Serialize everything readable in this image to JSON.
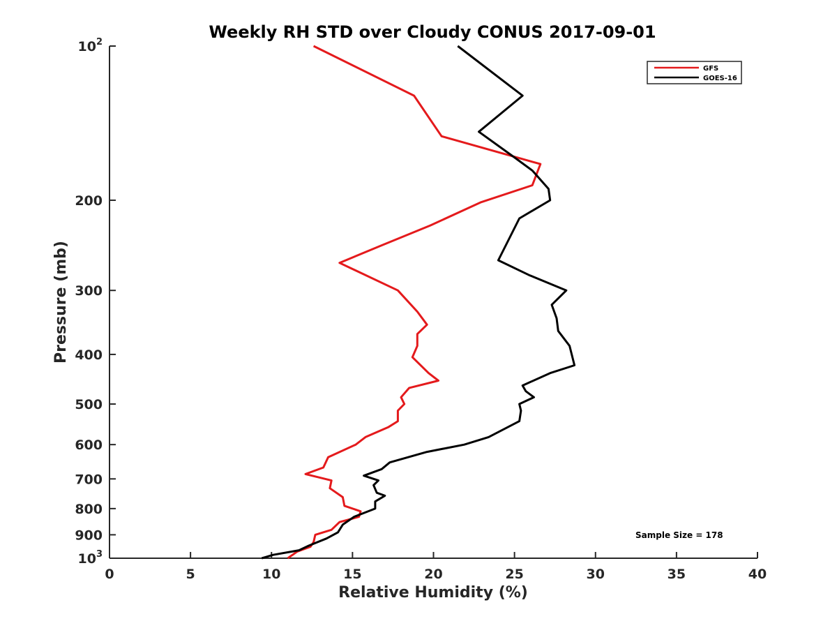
{
  "chart_data": {
    "type": "line",
    "title": "Weekly RH STD over Cloudy CONUS 2017-09-01",
    "xlabel": "Relative Humidity (%)",
    "ylabel": "Pressure (mb)",
    "xlim": [
      0,
      40
    ],
    "ylim": [
      100,
      1000
    ],
    "yscale": "log",
    "y_reversed": true,
    "grid": false,
    "legend_position": "top-right",
    "x_ticks": [
      0,
      5,
      10,
      15,
      20,
      25,
      30,
      35,
      40
    ],
    "x_tick_labels": [
      "0",
      "5",
      "10",
      "15",
      "20",
      "25",
      "30",
      "35",
      "40"
    ],
    "y_ticks": [
      {
        "value": 100,
        "base": "10",
        "exp": "2"
      },
      {
        "value": 200,
        "label": "200"
      },
      {
        "value": 300,
        "label": "300"
      },
      {
        "value": 400,
        "label": "400"
      },
      {
        "value": 500,
        "label": "500"
      },
      {
        "value": 600,
        "label": "600"
      },
      {
        "value": 700,
        "label": "700"
      },
      {
        "value": 800,
        "label": "800"
      },
      {
        "value": 900,
        "label": "900"
      },
      {
        "value": 1000,
        "base": "10",
        "exp": "3"
      }
    ],
    "annotation": "Sample Size = 178",
    "series": [
      {
        "name": "GFS",
        "color": "#e41a1c",
        "points": [
          {
            "x": 12.6,
            "y": 100
          },
          {
            "x": 18.8,
            "y": 125
          },
          {
            "x": 20.5,
            "y": 150
          },
          {
            "x": 26.6,
            "y": 170
          },
          {
            "x": 26.1,
            "y": 187
          },
          {
            "x": 22.9,
            "y": 202
          },
          {
            "x": 19.8,
            "y": 224
          },
          {
            "x": 16.8,
            "y": 245
          },
          {
            "x": 14.2,
            "y": 265
          },
          {
            "x": 17.8,
            "y": 300
          },
          {
            "x": 19.0,
            "y": 330
          },
          {
            "x": 19.6,
            "y": 350
          },
          {
            "x": 19.0,
            "y": 365
          },
          {
            "x": 19.0,
            "y": 385
          },
          {
            "x": 18.7,
            "y": 405
          },
          {
            "x": 19.7,
            "y": 435
          },
          {
            "x": 20.3,
            "y": 450
          },
          {
            "x": 18.5,
            "y": 465
          },
          {
            "x": 18.0,
            "y": 485
          },
          {
            "x": 18.2,
            "y": 500
          },
          {
            "x": 17.8,
            "y": 515
          },
          {
            "x": 17.8,
            "y": 540
          },
          {
            "x": 17.2,
            "y": 555
          },
          {
            "x": 15.8,
            "y": 580
          },
          {
            "x": 15.2,
            "y": 600
          },
          {
            "x": 13.5,
            "y": 635
          },
          {
            "x": 13.2,
            "y": 665
          },
          {
            "x": 12.1,
            "y": 685
          },
          {
            "x": 13.7,
            "y": 705
          },
          {
            "x": 13.6,
            "y": 730
          },
          {
            "x": 14.4,
            "y": 760
          },
          {
            "x": 14.5,
            "y": 790
          },
          {
            "x": 15.5,
            "y": 810
          },
          {
            "x": 15.4,
            "y": 830
          },
          {
            "x": 14.2,
            "y": 850
          },
          {
            "x": 13.7,
            "y": 880
          },
          {
            "x": 12.7,
            "y": 900
          },
          {
            "x": 12.6,
            "y": 930
          },
          {
            "x": 12.4,
            "y": 950
          },
          {
            "x": 11.6,
            "y": 970
          },
          {
            "x": 11.0,
            "y": 1000
          }
        ]
      },
      {
        "name": "GOES-16",
        "color": "#000000",
        "points": [
          {
            "x": 21.5,
            "y": 100
          },
          {
            "x": 25.5,
            "y": 125
          },
          {
            "x": 22.8,
            "y": 147
          },
          {
            "x": 25.0,
            "y": 165
          },
          {
            "x": 26.1,
            "y": 175
          },
          {
            "x": 27.1,
            "y": 190
          },
          {
            "x": 27.2,
            "y": 200
          },
          {
            "x": 25.3,
            "y": 217
          },
          {
            "x": 24.0,
            "y": 262
          },
          {
            "x": 25.9,
            "y": 280
          },
          {
            "x": 28.2,
            "y": 300
          },
          {
            "x": 27.3,
            "y": 320
          },
          {
            "x": 27.6,
            "y": 340
          },
          {
            "x": 27.7,
            "y": 360
          },
          {
            "x": 28.4,
            "y": 385
          },
          {
            "x": 28.7,
            "y": 420
          },
          {
            "x": 27.2,
            "y": 435
          },
          {
            "x": 25.5,
            "y": 460
          },
          {
            "x": 25.7,
            "y": 472
          },
          {
            "x": 26.2,
            "y": 485
          },
          {
            "x": 25.3,
            "y": 500
          },
          {
            "x": 25.4,
            "y": 515
          },
          {
            "x": 25.3,
            "y": 540
          },
          {
            "x": 23.4,
            "y": 580
          },
          {
            "x": 21.9,
            "y": 600
          },
          {
            "x": 19.6,
            "y": 620
          },
          {
            "x": 17.3,
            "y": 650
          },
          {
            "x": 16.8,
            "y": 670
          },
          {
            "x": 15.7,
            "y": 690
          },
          {
            "x": 16.6,
            "y": 705
          },
          {
            "x": 16.3,
            "y": 720
          },
          {
            "x": 16.5,
            "y": 745
          },
          {
            "x": 17.0,
            "y": 755
          },
          {
            "x": 16.4,
            "y": 775
          },
          {
            "x": 16.4,
            "y": 800
          },
          {
            "x": 15.1,
            "y": 830
          },
          {
            "x": 14.4,
            "y": 860
          },
          {
            "x": 14.1,
            "y": 890
          },
          {
            "x": 13.4,
            "y": 915
          },
          {
            "x": 12.3,
            "y": 945
          },
          {
            "x": 11.7,
            "y": 965
          },
          {
            "x": 10.1,
            "y": 985
          },
          {
            "x": 9.4,
            "y": 1000
          }
        ]
      }
    ]
  }
}
